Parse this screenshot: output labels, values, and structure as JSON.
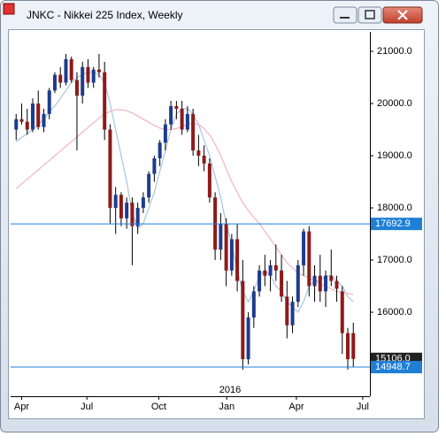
{
  "window_title": "JNKC - Nikkei 225 Index, Weekly",
  "chart_data": {
    "type": "candlestick",
    "up_color": "#1d3c8f",
    "down_color": "#8e1a1a",
    "wick_color": "#000000",
    "ohlc": [
      [
        19500,
        19800,
        19300,
        19700
      ],
      [
        19700,
        20000,
        19600,
        19650
      ],
      [
        19650,
        19900,
        19400,
        19500
      ],
      [
        19500,
        20100,
        19450,
        20000
      ],
      [
        20000,
        20250,
        19500,
        19550
      ],
      [
        19550,
        19900,
        19450,
        19800
      ],
      [
        19800,
        20300,
        19700,
        20250
      ],
      [
        20250,
        20600,
        20200,
        20550
      ],
      [
        20550,
        20700,
        20300,
        20400
      ],
      [
        20400,
        20950,
        20350,
        20850
      ],
      [
        20850,
        20900,
        20400,
        20450
      ],
      [
        20450,
        20600,
        19100,
        20150
      ],
      [
        20150,
        20800,
        20000,
        20700
      ],
      [
        20700,
        20850,
        20300,
        20400
      ],
      [
        20400,
        20700,
        20300,
        20650
      ],
      [
        20650,
        20950,
        20500,
        20600
      ],
      [
        20600,
        20800,
        19300,
        19500
      ],
      [
        19500,
        19600,
        17700,
        18000
      ],
      [
        18000,
        18400,
        17500,
        18250
      ],
      [
        18250,
        18300,
        17650,
        17800
      ],
      [
        17800,
        18200,
        17600,
        18100
      ],
      [
        18100,
        18200,
        16900,
        17650
      ],
      [
        17650,
        18100,
        17500,
        18000
      ],
      [
        18000,
        18300,
        17900,
        18200
      ],
      [
        18200,
        18700,
        18100,
        18650
      ],
      [
        18650,
        19000,
        18500,
        18950
      ],
      [
        18950,
        19300,
        18800,
        19250
      ],
      [
        19250,
        19700,
        19100,
        19600
      ],
      [
        19600,
        20050,
        19500,
        19950
      ],
      [
        19950,
        20050,
        19700,
        19900
      ],
      [
        19900,
        20050,
        19400,
        19500
      ],
      [
        19500,
        19950,
        19450,
        19800
      ],
      [
        19800,
        19900,
        19000,
        19100
      ],
      [
        19100,
        19400,
        18800,
        19000
      ],
      [
        19000,
        19200,
        18700,
        18850
      ],
      [
        18850,
        18950,
        18100,
        18200
      ],
      [
        18200,
        18300,
        17000,
        17200
      ],
      [
        17200,
        17900,
        17000,
        17700
      ],
      [
        17700,
        17800,
        16500,
        16800
      ],
      [
        16800,
        17500,
        16700,
        17400
      ],
      [
        17400,
        17700,
        16400,
        16600
      ],
      [
        16600,
        17000,
        14900,
        15100
      ],
      [
        15100,
        16000,
        15000,
        15900
      ],
      [
        15900,
        16500,
        15700,
        16400
      ],
      [
        16400,
        16900,
        16300,
        16800
      ],
      [
        16800,
        17100,
        16500,
        16700
      ],
      [
        16700,
        17000,
        16400,
        16900
      ],
      [
        16900,
        17300,
        16600,
        16800
      ],
      [
        16800,
        17100,
        16200,
        16300
      ],
      [
        16300,
        16600,
        15500,
        15750
      ],
      [
        15750,
        16300,
        15600,
        16200
      ],
      [
        16200,
        17000,
        16100,
        16900
      ],
      [
        16900,
        17600,
        16700,
        17550
      ],
      [
        17550,
        17650,
        16300,
        16500
      ],
      [
        16500,
        16900,
        16200,
        16700
      ],
      [
        16700,
        17100,
        16200,
        16400
      ],
      [
        16400,
        16800,
        16100,
        16700
      ],
      [
        16700,
        17200,
        16500,
        16600
      ],
      [
        16600,
        16700,
        16200,
        16450
      ],
      [
        16400,
        16500,
        15200,
        15600
      ],
      [
        15600,
        15700,
        14900,
        15100
      ],
      [
        15600,
        15800,
        14950,
        15106
      ]
    ],
    "lines": [
      {
        "color": "#a9c4e4",
        "values": [
          19270,
          19350,
          19420,
          19500,
          19600,
          19700,
          19850,
          19950,
          20100,
          20250,
          20400,
          20500,
          20550,
          20600,
          20600,
          20550,
          20400,
          20000,
          19500,
          19000,
          18500,
          17900,
          17600,
          17700,
          18000,
          18300,
          18700,
          19100,
          19500,
          19800,
          19900,
          19900,
          19800,
          19600,
          19300,
          19000,
          18600,
          18200,
          17700,
          17300,
          16800,
          16400,
          16200,
          16400,
          16700,
          16800,
          16700,
          16500,
          16400,
          16200,
          16100,
          16000,
          16200,
          16500,
          16600,
          16600,
          16700,
          16700,
          16600,
          16500,
          16300,
          16200
        ]
      },
      {
        "color": "#f2b3c8",
        "values": [
          18370,
          18460,
          18550,
          18640,
          18730,
          18820,
          18910,
          19000,
          19090,
          19180,
          19270,
          19360,
          19450,
          19540,
          19630,
          19720,
          19800,
          19850,
          19880,
          19880,
          19860,
          19820,
          19760,
          19700,
          19640,
          19580,
          19530,
          19500,
          19500,
          19520,
          19560,
          19600,
          19620,
          19600,
          19520,
          19400,
          19220,
          19000,
          18750,
          18500,
          18300,
          18100,
          17950,
          17820,
          17700,
          17550,
          17400,
          17250,
          17100,
          16950,
          16850,
          16750,
          16700,
          16650,
          16600,
          16550,
          16500,
          16450,
          16400,
          16380,
          16360,
          16340
        ]
      }
    ],
    "hlines": [
      {
        "value": 17692.9,
        "label": "17692.9",
        "color": "#1f7fd6"
      },
      {
        "value": 14948.7,
        "label": "14948.7",
        "color": "#1f7fd6"
      }
    ],
    "last_price": {
      "value": 15106.0,
      "label": "15106.0"
    },
    "ylim": [
      14390,
      21340
    ],
    "yticks": [
      {
        "value": 16000,
        "label": "16000.0"
      },
      {
        "value": 17000,
        "label": "17000.0"
      },
      {
        "value": 18000,
        "label": "18000.0"
      },
      {
        "value": 19000,
        "label": "19000.0"
      },
      {
        "value": 20000,
        "label": "20000.0"
      },
      {
        "value": 21000,
        "label": "21000.0"
      }
    ],
    "xlim": [
      -1,
      64
    ],
    "xticks": [
      {
        "value": 1,
        "label": "Apr"
      },
      {
        "value": 12.8,
        "label": "Jul"
      },
      {
        "value": 25.8,
        "label": "Oct"
      },
      {
        "value": 38.1,
        "label": "Jan"
      },
      {
        "value": 50.7,
        "label": "Apr"
      },
      {
        "value": 62.7,
        "label": "Jul"
      }
    ],
    "year_label": {
      "value": 38.7,
      "label": "2016"
    }
  }
}
